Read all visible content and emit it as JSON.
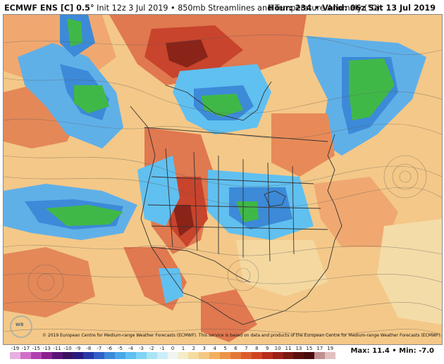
{
  "header": {
    "model": "ECMWF ENS [C] 0.5°",
    "init": "Init 12z 3 Jul 2019",
    "product": "850mb Streamlines and Temperature Anomaly (°C)",
    "hour_valid": "Hour: 234 • Valid: 06z Sat 13 Jul 2019"
  },
  "footer": {
    "copyright": "© 2019 European Centre for Medium-range Weather Forecasts (ECMWF). This service is based on data and products of the European Centre for Medium-range Weather Forecasts (ECMWF).",
    "logo": "WEATHERBELL",
    "max_min": "Max: 11.4 • Min: -7.0"
  },
  "colorbar": {
    "labels": [
      "-19",
      "-17",
      "-15",
      "-13",
      "-11",
      "-10",
      "-9",
      "-8",
      "-7",
      "-6",
      "-5",
      "-4",
      "-3",
      "-2",
      "-1",
      "0",
      "1",
      "2",
      "3",
      "4",
      "5",
      "6",
      "7",
      "8",
      "9",
      "10",
      "11",
      "13",
      "15",
      "17",
      "19"
    ],
    "colors": [
      "#e8b0e0",
      "#d070c8",
      "#b040b0",
      "#8a2090",
      "#5a1478",
      "#3a1060",
      "#2a1a80",
      "#2838a8",
      "#3060c8",
      "#3c8ad8",
      "#48a8e8",
      "#60c0f0",
      "#80d4f4",
      "#a8e4f4",
      "#cceef8",
      "#f0f4f0",
      "#f4ecc4",
      "#f4dca0",
      "#f4c880",
      "#f0b060",
      "#ec9448",
      "#e47838",
      "#dc5c2c",
      "#d04424",
      "#b82c1c",
      "#9a2018",
      "#7a1814",
      "#5c1010",
      "#4a0c0c",
      "#c09090",
      "#e0c0c0"
    ]
  },
  "map": {
    "background": "#f4c888",
    "anomaly_regions": [
      {
        "color": "#e88a58",
        "label": "warm"
      },
      {
        "color": "#c8442c",
        "label": "strong-warm"
      },
      {
        "color": "#3c8ad8",
        "label": "cool"
      },
      {
        "color": "#60c0f0",
        "label": "mild-cool"
      },
      {
        "color": "#40b848",
        "label": "strong-cool"
      }
    ]
  }
}
